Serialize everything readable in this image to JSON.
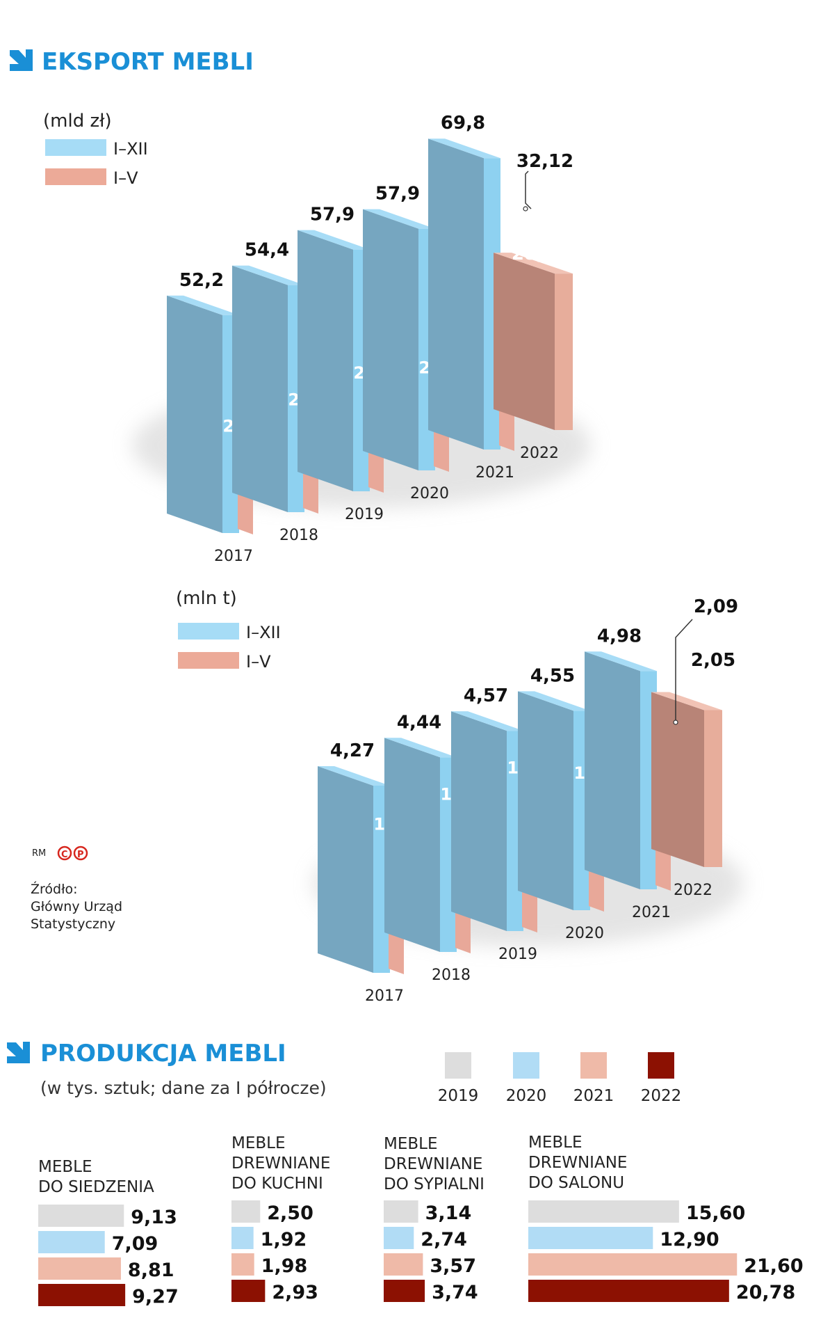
{
  "colors": {
    "accent": "#1a8fd6",
    "full_year_front": "#76a6c0",
    "full_year_side": "#8ed1f0",
    "full_year_top": "#a7dcf6",
    "jan_may_front": "#e8a899",
    "jan_may_side": "#e7ad9b",
    "jan_may_top": "#f1c3b5",
    "current_front": "#b88477",
    "y2019": "#dddddd",
    "y2020": "#b1dcf5",
    "y2021": "#efbaa8",
    "y2022": "#8c1102"
  },
  "export": {
    "title": "EKSPORT MEBLI",
    "title_icon": "arrow-down-right-icon",
    "legend": {
      "full_year": "I–XII",
      "jan_may": "I–V"
    }
  },
  "chart_data": [
    {
      "type": "bar",
      "unit_label": "(mld zł)",
      "categories": [
        "2017",
        "2018",
        "2019",
        "2020",
        "2021",
        "2022"
      ],
      "series": [
        {
          "name": "I–XII",
          "values": [
            52.2,
            54.4,
            57.9,
            57.9,
            69.8,
            null
          ],
          "labels": [
            "52,2",
            "54,4",
            "57,9",
            "57,9",
            "69,8",
            ""
          ]
        },
        {
          "name": "I–V",
          "values": [
            21.7,
            23.1,
            24.6,
            20.6,
            28.0,
            32.12
          ],
          "labels": [
            "21,7",
            "23,1",
            "24,6",
            "20,6",
            "28,0",
            "32,12"
          ]
        }
      ]
    },
    {
      "type": "bar",
      "unit_label": "(mln t)",
      "categories": [
        "2017",
        "2018",
        "2019",
        "2020",
        "2021",
        "2022"
      ],
      "series": [
        {
          "name": "I–XII",
          "values": [
            4.27,
            4.44,
            4.57,
            4.55,
            4.98,
            null
          ],
          "labels": [
            "4,27",
            "4,44",
            "4,57",
            "4,55",
            "4,98",
            ""
          ]
        },
        {
          "name": "I–V",
          "values": [
            1.75,
            1.87,
            1.95,
            1.59,
            2.09,
            2.05
          ],
          "labels": [
            "1,75",
            "1,87",
            "1,95",
            "1,59",
            "2,09",
            "2,05"
          ]
        }
      ]
    },
    {
      "type": "bar",
      "orientation": "horizontal",
      "years": [
        "2019",
        "2020",
        "2021",
        "2022"
      ],
      "groups": [
        {
          "label": [
            "MEBLE",
            "DO SIEDZENIA"
          ],
          "values": [
            9.13,
            7.09,
            8.81,
            9.27
          ],
          "labels": [
            "9,13",
            "7,09",
            "8,81",
            "9,27"
          ]
        },
        {
          "label": [
            "MEBLE",
            "DREWNIANE",
            "DO KUCHNI"
          ],
          "values": [
            2.5,
            1.92,
            1.98,
            2.93
          ],
          "labels": [
            "2,50",
            "1,92",
            "1,98",
            "2,93"
          ]
        },
        {
          "label": [
            "MEBLE",
            "DREWNIANE",
            "DO SYPIALNI"
          ],
          "values": [
            3.14,
            2.74,
            3.57,
            3.74
          ],
          "labels": [
            "3,14",
            "2,74",
            "3,57",
            "3,74"
          ]
        },
        {
          "label": [
            "MEBLE",
            "DREWNIANE",
            "DO SALONU"
          ],
          "values": [
            15.6,
            12.9,
            21.6,
            20.78
          ],
          "labels": [
            "15,60",
            "12,90",
            "21,60",
            "20,78"
          ]
        }
      ]
    }
  ],
  "production": {
    "title": "PRODUKCJA MEBLI",
    "title_icon": "arrow-down-right-icon",
    "subtitle": "(w tys. sztuk; dane za I półrocze)"
  },
  "credits": {
    "rm": "RM",
    "c_icon": "C",
    "p_icon": "P",
    "source": [
      "Źródło:",
      "Główny Urząd",
      "Statystyczny"
    ]
  }
}
